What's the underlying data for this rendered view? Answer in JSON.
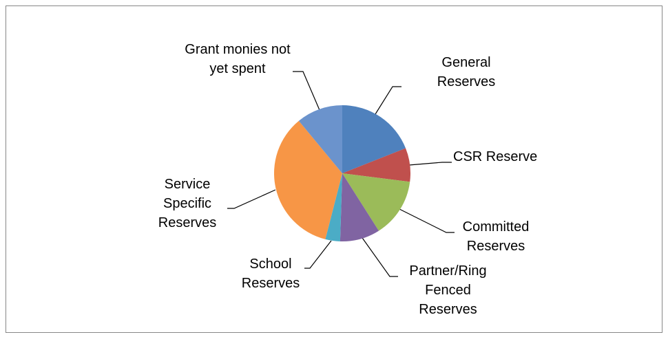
{
  "chart_data": {
    "type": "pie",
    "categories": [
      "General Reserves",
      "CSR Reserve",
      "Committed Reserves",
      "Partner/Ring Fenced Reserves",
      "School Reserves",
      "Service Specific Reserves",
      "Grant monies not yet spent"
    ],
    "values": [
      19,
      8,
      14,
      9.5,
      3.5,
      35,
      11
    ],
    "colors": [
      "#4f81bd",
      "#c0504d",
      "#9bbb59",
      "#8064a2",
      "#4bacc6",
      "#f79646",
      "#6b93cc"
    ]
  }
}
